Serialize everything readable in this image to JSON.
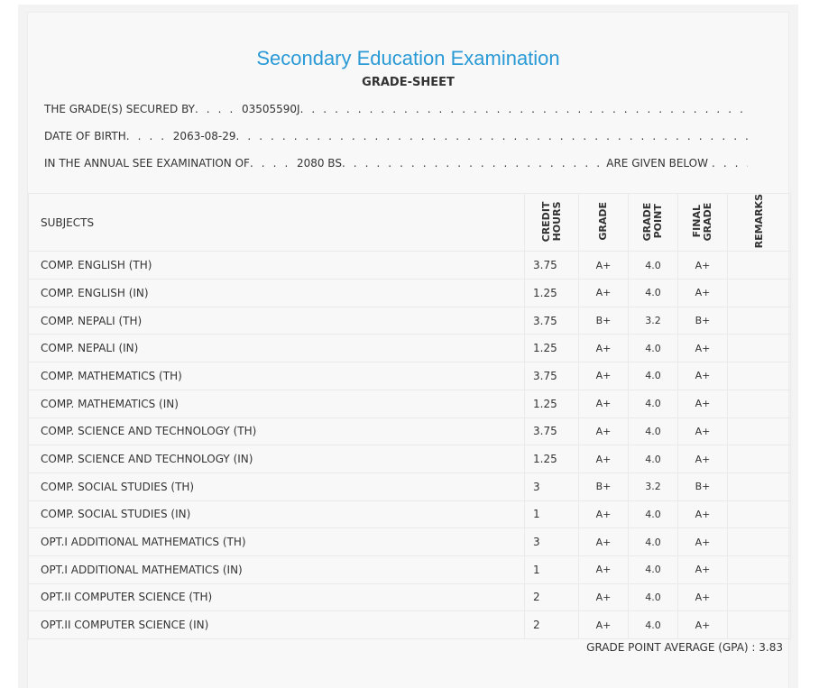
{
  "header": {
    "title": "Secondary Education Examination",
    "subtitle": "GRADE-SHEET"
  },
  "info": [
    {
      "label": "THE GRADE(S) SECURED BY",
      "value": "03505590J"
    },
    {
      "label": "DATE OF BIRTH",
      "value": "2063-08-29"
    },
    {
      "label": "IN THE ANNUAL SEE EXAMINATION OF",
      "value": "2080 BS",
      "suffix": "ARE GIVEN BELOW"
    }
  ],
  "table": {
    "columns": [
      "SUBJECTS",
      "CREDIT HOURS",
      "GRADE",
      "GRADE POINT",
      "FINAL GRADE",
      "REMARKS"
    ],
    "rows": [
      [
        "COMP. ENGLISH (TH)",
        "3.75",
        "A+",
        "4.0",
        "A+"
      ],
      [
        "COMP. ENGLISH (IN)",
        "1.25",
        "A+",
        "4.0",
        "A+"
      ],
      [
        "COMP. NEPALI (TH)",
        "3.75",
        "B+",
        "3.2",
        "B+"
      ],
      [
        "COMP. NEPALI (IN)",
        "1.25",
        "A+",
        "4.0",
        "A+"
      ],
      [
        "COMP. MATHEMATICS (TH)",
        "3.75",
        "A+",
        "4.0",
        "A+"
      ],
      [
        "COMP. MATHEMATICS (IN)",
        "1.25",
        "A+",
        "4.0",
        "A+"
      ],
      [
        "COMP. SCIENCE AND TECHNOLOGY (TH)",
        "3.75",
        "A+",
        "4.0",
        "A+"
      ],
      [
        "COMP. SCIENCE AND TECHNOLOGY (IN)",
        "1.25",
        "A+",
        "4.0",
        "A+"
      ],
      [
        "COMP. SOCIAL STUDIES (TH)",
        "3",
        "B+",
        "3.2",
        "B+"
      ],
      [
        "COMP. SOCIAL STUDIES (IN)",
        "1",
        "A+",
        "4.0",
        "A+"
      ],
      [
        "OPT.I ADDITIONAL MATHEMATICS (TH)",
        "3",
        "A+",
        "4.0",
        "A+"
      ],
      [
        "OPT.I ADDITIONAL MATHEMATICS (IN)",
        "1",
        "A+",
        "4.0",
        "A+"
      ],
      [
        "OPT.II COMPUTER SCIENCE (TH)",
        "2",
        "A+",
        "4.0",
        "A+"
      ],
      [
        "OPT.II COMPUTER SCIENCE (IN)",
        "2",
        "A+",
        "4.0",
        "A+"
      ]
    ]
  },
  "gpa": {
    "label": "GRADE POINT AVERAGE (GPA) :",
    "value": "3.83"
  }
}
